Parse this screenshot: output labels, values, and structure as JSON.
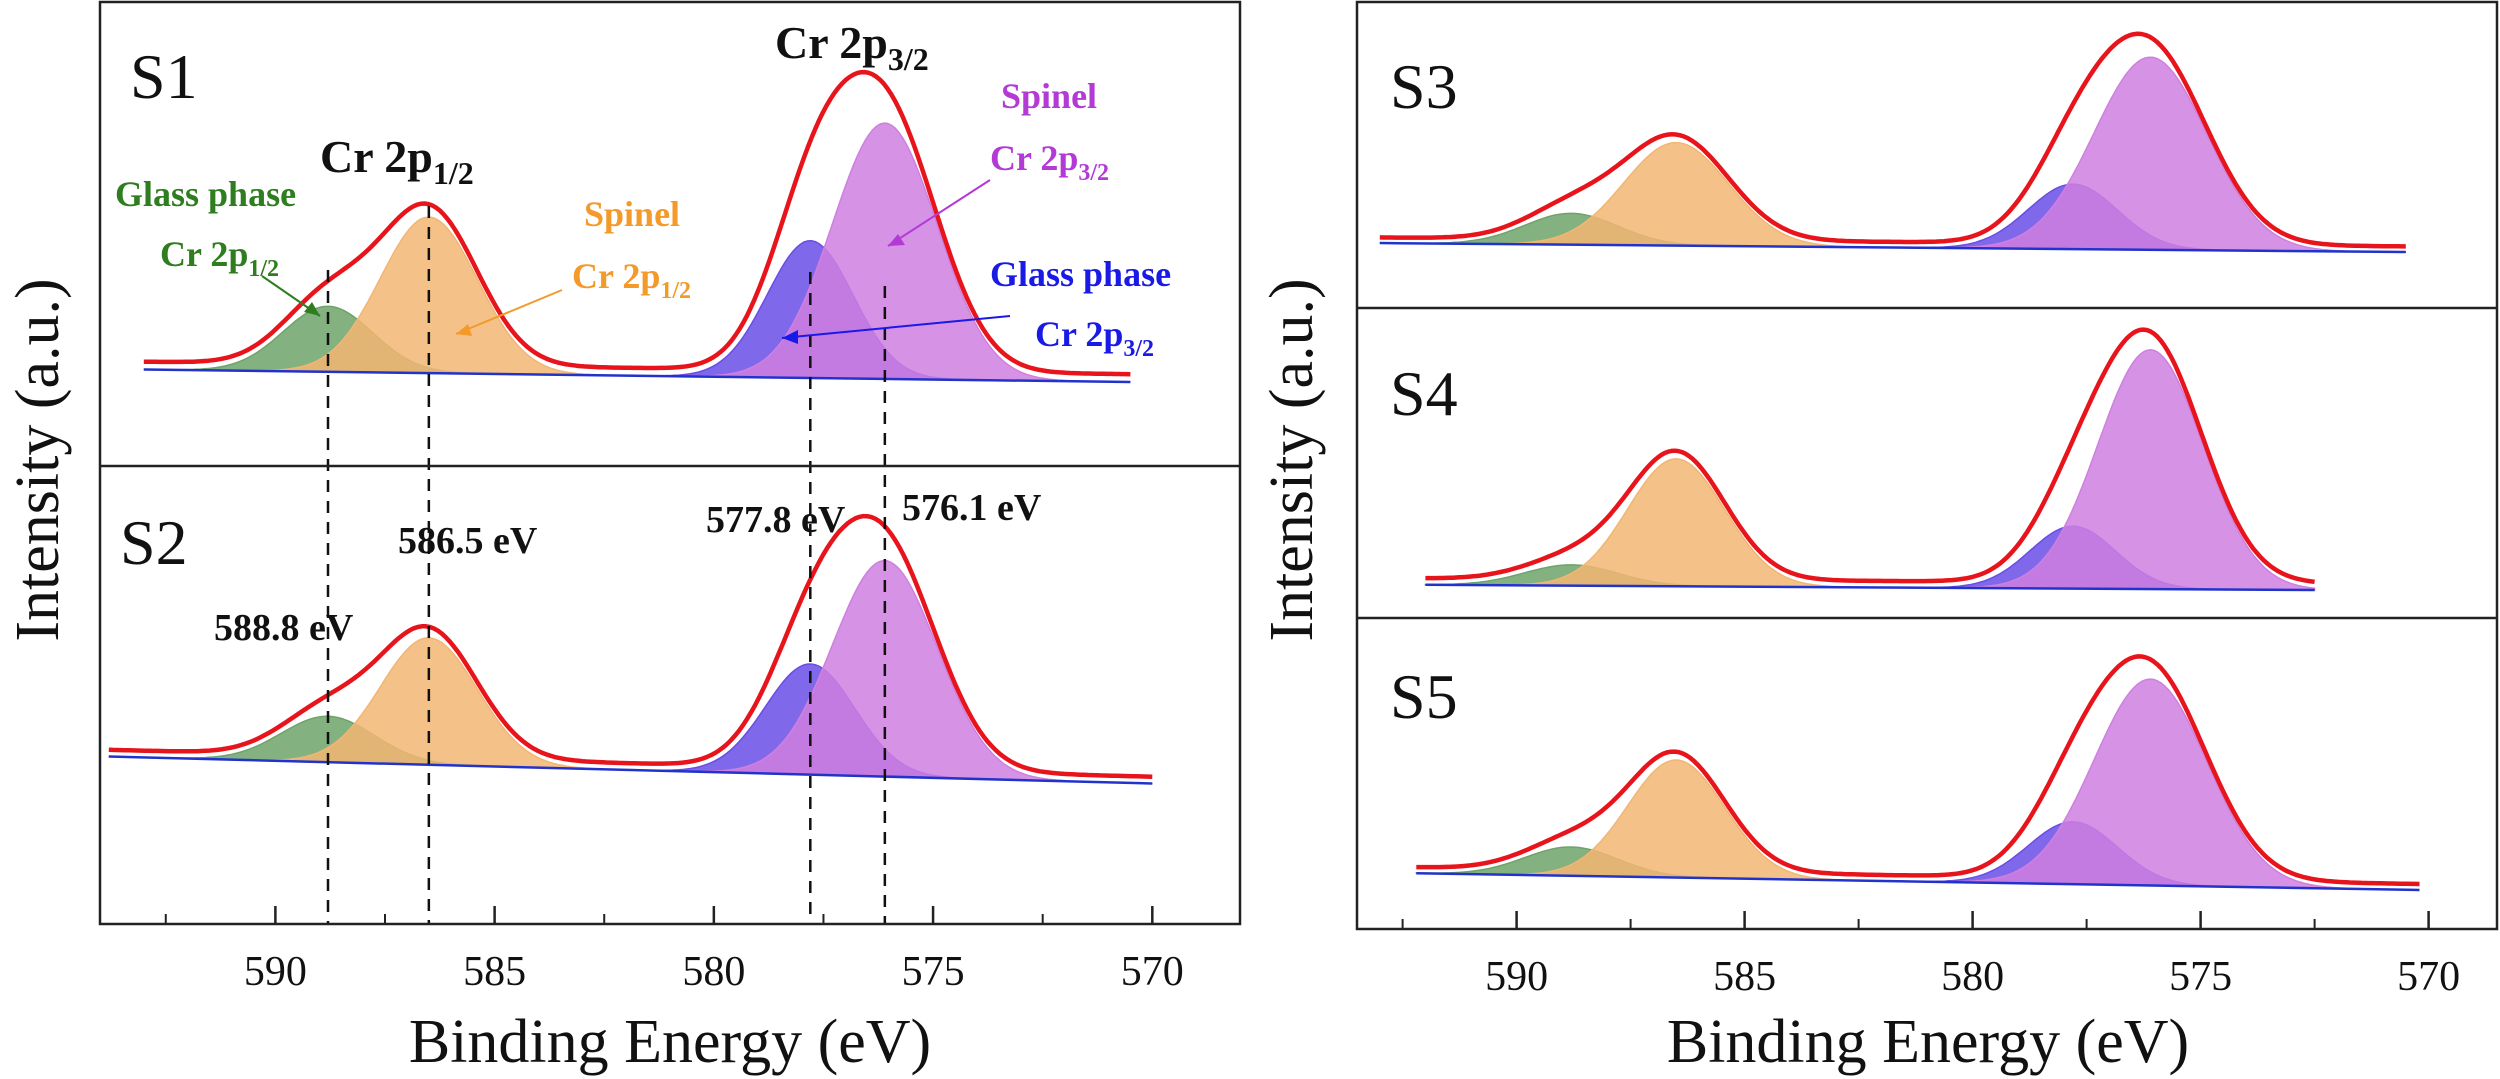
{
  "figure": {
    "y_axis_label": "Intensity (a.u.)",
    "x_axis_label": "Binding Energy (eV)"
  },
  "annotations": {
    "cr2p12": {
      "prefix": "Cr 2p",
      "sub": "1/2"
    },
    "cr2p32": {
      "prefix": "Cr 2p",
      "sub": "3/2"
    },
    "glass_phase": "Glass phase",
    "spinel": "Spinel",
    "cr2p": "Cr 2p",
    "sub_12": "1/2",
    "sub_32": "3/2",
    "peak_labels": [
      "588.8 eV",
      "586.5 eV",
      "577.8 eV",
      "576.1 eV"
    ]
  },
  "colors": {
    "envelope": "#e8141c",
    "glass_2p12": "#6fa36a",
    "spinel_2p12": "#f2b673",
    "glass_2p32": "#6a4de6",
    "spinel_2p32": "#cf7fe0",
    "baseline": "#2233cc",
    "glass_label": "#2e7d1e",
    "spinel12_label": "#f39a2a",
    "glass32_label": "#1a1ae6",
    "spinel32_label": "#b43ad6"
  },
  "chart_data": [
    {
      "type": "area",
      "panel": "S1",
      "xlabel": "Binding Energy (eV)",
      "ylabel": "Intensity (a.u.)",
      "x_range": [
        594,
        568
      ],
      "xticks": [
        590,
        585,
        580,
        575,
        570
      ],
      "x_span": [
        593,
        570.5
      ],
      "baseline": [
        0.04,
        0.0
      ],
      "series": [
        {
          "name": "Glass phase Cr 2p1/2",
          "center": 588.8,
          "height": 0.21,
          "fwhm": 2.4
        },
        {
          "name": "Spinel Cr 2p1/2",
          "center": 586.5,
          "height": 0.5,
          "fwhm": 2.6
        },
        {
          "name": "Glass phase Cr 2p3/2",
          "center": 577.8,
          "height": 0.44,
          "fwhm": 2.3
        },
        {
          "name": "Spinel Cr 2p3/2",
          "center": 576.1,
          "height": 0.82,
          "fwhm": 2.8
        }
      ]
    },
    {
      "type": "area",
      "panel": "S2",
      "x_range": [
        594,
        568
      ],
      "xticks": [
        590,
        585,
        580,
        575,
        570
      ],
      "x_span": [
        593.8,
        570
      ],
      "baseline": [
        0.05,
        -0.05
      ],
      "series": [
        {
          "name": "Glass phase Cr 2p1/2",
          "center": 588.8,
          "height": 0.17,
          "fwhm": 2.5
        },
        {
          "name": "Spinel Cr 2p1/2",
          "center": 586.5,
          "height": 0.47,
          "fwhm": 2.6
        },
        {
          "name": "Glass phase Cr 2p3/2",
          "center": 577.8,
          "height": 0.41,
          "fwhm": 2.4
        },
        {
          "name": "Spinel Cr 2p3/2",
          "center": 576.1,
          "height": 0.8,
          "fwhm": 2.8
        }
      ]
    },
    {
      "type": "area",
      "panel": "S3",
      "xlabel": "Binding Energy (eV)",
      "ylabel": "Intensity (a.u.)",
      "x_range": [
        593.5,
        568.5
      ],
      "xticks": [
        590,
        585,
        580,
        575,
        570
      ],
      "x_span": [
        593,
        570.5
      ],
      "baseline": [
        0.04,
        0.0
      ],
      "series": [
        {
          "name": "Glass phase Cr 2p1/2",
          "center": 588.8,
          "height": 0.14,
          "fwhm": 2.4
        },
        {
          "name": "Spinel Cr 2p1/2",
          "center": 586.5,
          "height": 0.46,
          "fwhm": 2.7
        },
        {
          "name": "Glass phase Cr 2p3/2",
          "center": 577.8,
          "height": 0.29,
          "fwhm": 2.3
        },
        {
          "name": "Spinel Cr 2p3/2",
          "center": 576.1,
          "height": 0.86,
          "fwhm": 2.9
        }
      ]
    },
    {
      "type": "area",
      "panel": "S4",
      "x_range": [
        593.5,
        568.5
      ],
      "xticks": [
        590,
        585,
        580,
        575,
        570
      ],
      "x_span": [
        592,
        572.5
      ],
      "baseline": [
        0.02,
        0.0
      ],
      "series": [
        {
          "name": "Glass phase Cr 2p1/2",
          "center": 588.8,
          "height": 0.08,
          "fwhm": 2.4
        },
        {
          "name": "Spinel Cr 2p1/2",
          "center": 586.5,
          "height": 0.49,
          "fwhm": 2.5
        },
        {
          "name": "Glass phase Cr 2p3/2",
          "center": 577.8,
          "height": 0.24,
          "fwhm": 2.2
        },
        {
          "name": "Spinel Cr 2p3/2",
          "center": 576.1,
          "height": 0.92,
          "fwhm": 2.7
        }
      ]
    },
    {
      "type": "area",
      "panel": "S5",
      "x_range": [
        593.5,
        568.5
      ],
      "xticks": [
        590,
        585,
        580,
        575,
        570
      ],
      "x_span": [
        592.2,
        570.2
      ],
      "baseline": [
        0.07,
        0.0
      ],
      "series": [
        {
          "name": "Glass phase Cr 2p1/2",
          "center": 588.8,
          "height": 0.12,
          "fwhm": 2.4
        },
        {
          "name": "Spinel Cr 2p1/2",
          "center": 586.5,
          "height": 0.49,
          "fwhm": 2.5
        },
        {
          "name": "Glass phase Cr 2p3/2",
          "center": 577.8,
          "height": 0.26,
          "fwhm": 2.3
        },
        {
          "name": "Spinel Cr 2p3/2",
          "center": 576.1,
          "height": 0.86,
          "fwhm": 2.9
        }
      ]
    }
  ]
}
